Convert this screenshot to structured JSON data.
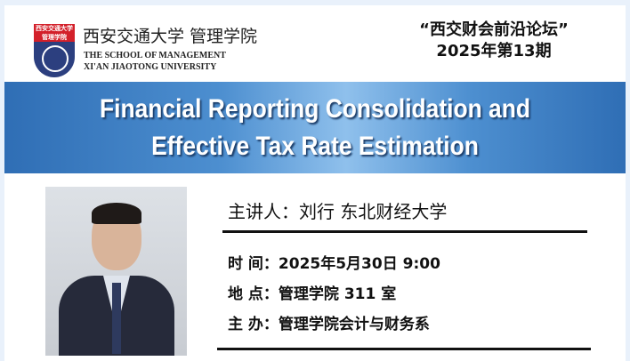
{
  "header": {
    "logo_badge_text": "西安交通大学 管理学院",
    "school_cn": "西安交通大学 管理学院",
    "school_en_line1": "THE SCHOOL OF MANAGEMENT",
    "school_en_line2": "XI'AN JIAOTONG UNIVERSITY",
    "forum_name": "“西交财会前沿论坛”",
    "forum_issue": "2025年第13期"
  },
  "banner": {
    "title_line1": "Financial Reporting Consolidation and",
    "title_line2": "Effective Tax Rate Estimation"
  },
  "details": {
    "speaker": "主讲人：刘行  东北财经大学",
    "time": "时  间：2025年5月30日  9:00",
    "location": "地  点：管理学院 311 室",
    "host": "主  办：管理学院会计与财务系"
  },
  "colors": {
    "banner": "#3a7cc2",
    "logo_red": "#d3202a",
    "logo_navy": "#2c3f7f"
  }
}
